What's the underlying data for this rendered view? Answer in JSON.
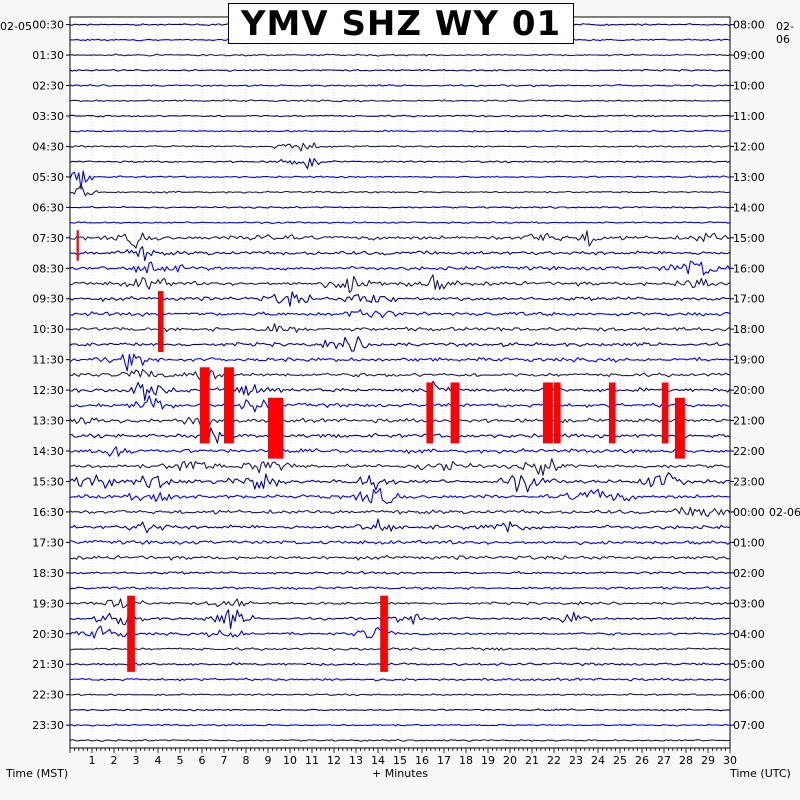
{
  "title": "YMV SHZ WY 01",
  "left_axis_label": "Time (MST)",
  "right_axis_label": "Time (UTC)",
  "x_axis_label": "+ Minutes",
  "left_date": "02-05",
  "right_date_top": "02-06",
  "right_date_mid": "02-06",
  "chart_data": {
    "type": "seismogram",
    "title": "YMV SHZ WY 01",
    "xlabel": "+ Minutes",
    "xlim": [
      0,
      30
    ],
    "x_ticks": [
      "1",
      "2",
      "3",
      "4",
      "5",
      "6",
      "7",
      "8",
      "9",
      "10",
      "11",
      "12",
      "13",
      "14",
      "15",
      "16",
      "17",
      "18",
      "19",
      "20",
      "21",
      "22",
      "23",
      "24",
      "25",
      "26",
      "27",
      "28",
      "29",
      "30"
    ],
    "left_ticks": [
      "00:30",
      "01:30",
      "02:30",
      "03:30",
      "04:30",
      "05:30",
      "06:30",
      "07:30",
      "08:30",
      "09:30",
      "10:30",
      "11:30",
      "12:30",
      "13:30",
      "14:30",
      "15:30",
      "16:30",
      "17:30",
      "18:30",
      "19:30",
      "20:30",
      "21:30",
      "22:30",
      "23:30"
    ],
    "right_ticks": [
      "08:00",
      "09:00",
      "10:00",
      "11:00",
      "12:00",
      "13:00",
      "14:00",
      "15:00",
      "16:00",
      "17:00",
      "18:00",
      "19:00",
      "20:00",
      "21:00",
      "22:00",
      "23:00",
      "00:00",
      "01:00",
      "02:00",
      "03:00",
      "04:00",
      "05:00",
      "06:00",
      "07:00"
    ],
    "trace_colors": [
      "#0000a0",
      "#0000ff",
      "#1a1a60"
    ],
    "clip_color": "#ff0000",
    "grid": true
  }
}
